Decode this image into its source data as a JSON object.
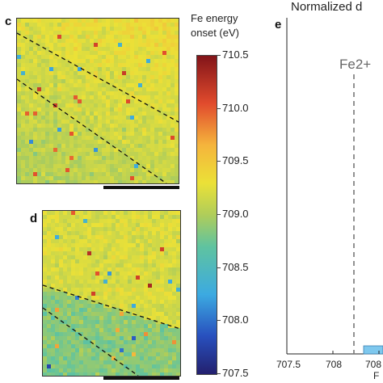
{
  "panels": {
    "c": {
      "letter": "c"
    },
    "d": {
      "letter": "d"
    },
    "e": {
      "letter": "e",
      "title": "Normalized d",
      "marker_label": "Fe2+",
      "xtick_labels": [
        "707.5",
        "708",
        "708",
        "F"
      ]
    }
  },
  "colorbar": {
    "title_line1": "Fe energy",
    "title_line2": "onset (eV)",
    "min": 707.5,
    "max": 710.5,
    "tick_labels": [
      "710.5",
      "710.0",
      "709.5",
      "709.0",
      "708.5",
      "708.0",
      "707.5"
    ],
    "tick_values": [
      710.5,
      710.0,
      709.5,
      709.0,
      708.5,
      708.0,
      707.5
    ]
  },
  "colors": {
    "histogram_bar": "#7ec8ee",
    "dashed_line": "#111111",
    "marker_line": "#777777"
  }
}
